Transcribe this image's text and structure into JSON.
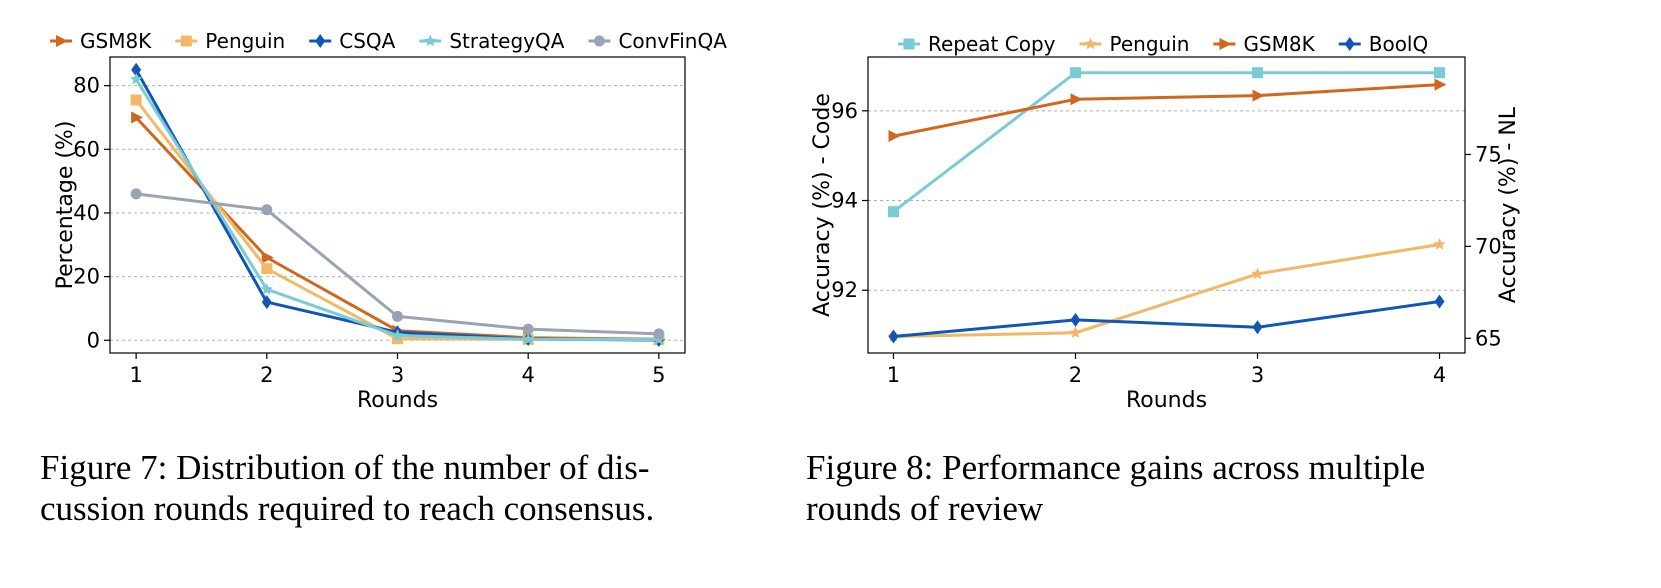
{
  "chart_data": [
    {
      "type": "line",
      "xlabel": "Rounds",
      "ylabel": "Percentage (%)",
      "x": [
        1,
        2,
        3,
        4,
        5
      ],
      "xticks": [
        "1",
        "2",
        "3",
        "4",
        "5"
      ],
      "yticks": [
        "0",
        "20",
        "40",
        "60",
        "80"
      ],
      "ylim": [
        -4,
        89
      ],
      "grid": true,
      "legend": "top, outside",
      "series": [
        {
          "name": "GSM8K",
          "color": "#d0671f",
          "marker": "triangle-right",
          "values": [
            70.0,
            26.0,
            3.0,
            0.8,
            0.3
          ]
        },
        {
          "name": "Penguin",
          "color": "#f2b866",
          "marker": "square",
          "values": [
            75.5,
            22.5,
            0.5,
            0.3,
            0.2
          ]
        },
        {
          "name": "CSQA",
          "color": "#1057b5",
          "marker": "diamond",
          "values": [
            85.0,
            12.0,
            2.5,
            0.4,
            0.1
          ]
        },
        {
          "name": "StrategyQA",
          "color": "#7bcbd6",
          "marker": "star",
          "values": [
            82.0,
            16.0,
            1.5,
            0.3,
            0.2
          ]
        },
        {
          "name": "ConvFinQA",
          "color": "#9aa3b3",
          "marker": "circle",
          "values": [
            46.0,
            41.0,
            7.5,
            3.5,
            2.0
          ]
        }
      ]
    },
    {
      "type": "line",
      "xlabel": "Rounds",
      "ylabel": "Accuracy (%) - Code",
      "y2label": "Accuracy (%) - NL",
      "x": [
        1,
        2,
        3,
        4
      ],
      "xticks": [
        "1",
        "2",
        "3",
        "4"
      ],
      "yticks": [
        "92",
        "94",
        "96"
      ],
      "y2ticks": [
        "65",
        "70",
        "75"
      ],
      "ylim": [
        90.6,
        97.2
      ],
      "y2lim": [
        64.2,
        80.3
      ],
      "grid": true,
      "legend": "top, outside",
      "series": [
        {
          "name": "Repeat Copy",
          "axis": "left",
          "color": "#7bcbd6",
          "marker": "square",
          "values": [
            93.75,
            96.85,
            96.85,
            96.85
          ]
        },
        {
          "name": "Penguin",
          "axis": "right",
          "color": "#f2b866",
          "marker": "star",
          "values": [
            65.1,
            65.3,
            68.5,
            70.1
          ]
        },
        {
          "name": "GSM8K",
          "axis": "right",
          "color": "#d0671f",
          "marker": "triangle-right",
          "values": [
            76.0,
            78.0,
            78.2,
            78.8
          ]
        },
        {
          "name": "BoolQ",
          "axis": "right",
          "color": "#1057b5",
          "marker": "diamond",
          "values": [
            65.1,
            66.0,
            65.6,
            67.0
          ]
        }
      ]
    }
  ],
  "captions": {
    "fig7": "Figure 7: Distribution of the number of dis- cussion rounds required to reach consensus.",
    "fig7_line1": "Figure 7: Distribution of the number of dis-",
    "fig7_line2": "cussion rounds required to reach consensus.",
    "fig8": "Figure 8: Performance gains across multiple rounds of review",
    "fig8_line1": "Figure 8: Performance gains across multiple",
    "fig8_line2": "rounds of review"
  }
}
